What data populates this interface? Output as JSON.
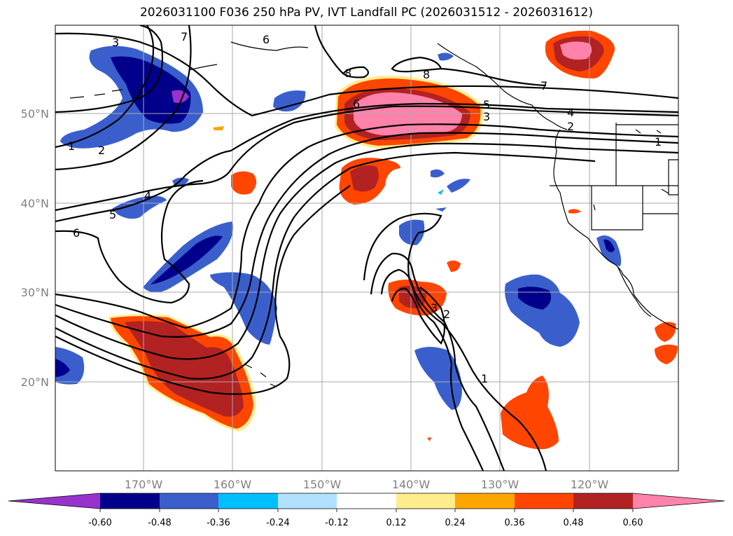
{
  "title": "2026031100 F036 250 hPa PV, IVT Landfall PC (2026031512 - 2026031612)",
  "lon_labels": [
    "170°W",
    "160°W",
    "150°W",
    "140°W",
    "130°W",
    "120°W"
  ],
  "lat_labels": [
    "50°N",
    "40°N",
    "30°N",
    "20°N"
  ],
  "colorbar": {
    "colors": [
      "#9932cc",
      "#00008b",
      "#3a5fcd",
      "#00bfff",
      "#b0e2ff",
      "#ffffff",
      "#ffec8b",
      "#ffa500",
      "#ff4500",
      "#b22222",
      "#ff82ab"
    ],
    "ticks": [
      "-0.60",
      "-0.48",
      "-0.36",
      "-0.24",
      "-0.12",
      "0.12",
      "0.24",
      "0.36",
      "0.48",
      "0.60"
    ]
  },
  "contour_labels": [
    "3",
    "7",
    "6",
    "8",
    "8",
    "6",
    "5",
    "3",
    "7",
    "4",
    "2",
    "1",
    "1",
    "2",
    "4",
    "5",
    "6",
    "3",
    "2",
    "1"
  ]
}
